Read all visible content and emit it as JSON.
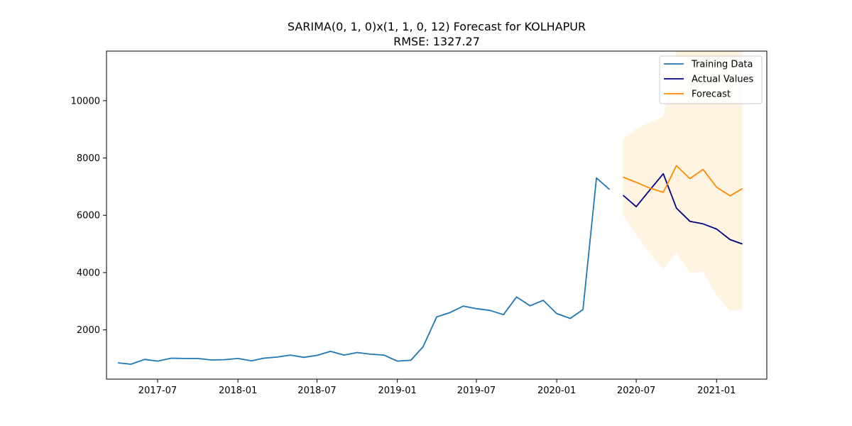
{
  "chart_data": {
    "type": "line",
    "title": "SARIMA(0, 1, 0)x(1, 1, 0, 12) Forecast for KOLHAPUR",
    "subtitle": "RMSE: 1327.27",
    "xlabel": "",
    "ylabel": "",
    "x_axis": {
      "type": "date",
      "range": [
        "2017-03-06",
        "2021-04-26"
      ],
      "ticks": [
        "2017-07",
        "2018-01",
        "2018-07",
        "2019-01",
        "2019-07",
        "2020-01",
        "2020-07",
        "2021-01"
      ]
    },
    "y_axis": {
      "range": [
        280,
        11730
      ],
      "ticks": [
        2000,
        4000,
        6000,
        8000,
        10000
      ]
    },
    "grid": false,
    "legend": {
      "position": "top-right",
      "entries": [
        {
          "label": "Training Data",
          "color": "#1f77b4"
        },
        {
          "label": "Actual Values",
          "color": "#000080"
        },
        {
          "label": "Forecast",
          "color": "#ff8c00"
        }
      ]
    },
    "series": [
      {
        "name": "Training Data",
        "color": "#1f77b4",
        "points": [
          {
            "x": "2017-04-01",
            "y": 850
          },
          {
            "x": "2017-05-01",
            "y": 800
          },
          {
            "x": "2017-06-01",
            "y": 970
          },
          {
            "x": "2017-07-01",
            "y": 910
          },
          {
            "x": "2017-08-01",
            "y": 1010
          },
          {
            "x": "2017-09-01",
            "y": 1000
          },
          {
            "x": "2017-10-01",
            "y": 1000
          },
          {
            "x": "2017-11-01",
            "y": 950
          },
          {
            "x": "2017-12-01",
            "y": 960
          },
          {
            "x": "2018-01-01",
            "y": 1000
          },
          {
            "x": "2018-02-01",
            "y": 920
          },
          {
            "x": "2018-03-01",
            "y": 1010
          },
          {
            "x": "2018-04-01",
            "y": 1050
          },
          {
            "x": "2018-05-01",
            "y": 1120
          },
          {
            "x": "2018-06-01",
            "y": 1040
          },
          {
            "x": "2018-07-01",
            "y": 1110
          },
          {
            "x": "2018-08-01",
            "y": 1250
          },
          {
            "x": "2018-09-01",
            "y": 1120
          },
          {
            "x": "2018-10-01",
            "y": 1210
          },
          {
            "x": "2018-11-01",
            "y": 1150
          },
          {
            "x": "2018-12-01",
            "y": 1120
          },
          {
            "x": "2019-01-01",
            "y": 910
          },
          {
            "x": "2019-02-01",
            "y": 940
          },
          {
            "x": "2019-03-01",
            "y": 1410
          },
          {
            "x": "2019-04-01",
            "y": 2450
          },
          {
            "x": "2019-05-01",
            "y": 2600
          },
          {
            "x": "2019-06-01",
            "y": 2830
          },
          {
            "x": "2019-07-01",
            "y": 2740
          },
          {
            "x": "2019-08-01",
            "y": 2680
          },
          {
            "x": "2019-09-01",
            "y": 2530
          },
          {
            "x": "2019-10-01",
            "y": 3150
          },
          {
            "x": "2019-11-01",
            "y": 2840
          },
          {
            "x": "2019-12-01",
            "y": 3030
          },
          {
            "x": "2020-01-01",
            "y": 2570
          },
          {
            "x": "2020-02-01",
            "y": 2400
          },
          {
            "x": "2020-03-01",
            "y": 2710
          },
          {
            "x": "2020-04-01",
            "y": 7300
          },
          {
            "x": "2020-05-01",
            "y": 6900
          }
        ]
      },
      {
        "name": "Actual Values",
        "color": "#000080",
        "points": [
          {
            "x": "2020-06-01",
            "y": 6700
          },
          {
            "x": "2020-07-01",
            "y": 6300
          },
          {
            "x": "2020-08-01",
            "y": 6880
          },
          {
            "x": "2020-09-01",
            "y": 7450
          },
          {
            "x": "2020-10-01",
            "y": 6250
          },
          {
            "x": "2020-11-01",
            "y": 5790
          },
          {
            "x": "2020-12-01",
            "y": 5700
          },
          {
            "x": "2021-01-01",
            "y": 5520
          },
          {
            "x": "2021-02-01",
            "y": 5150
          },
          {
            "x": "2021-03-01",
            "y": 5000
          }
        ]
      },
      {
        "name": "Forecast",
        "color": "#ff8c00",
        "points": [
          {
            "x": "2020-06-01",
            "y": 7330
          },
          {
            "x": "2020-07-01",
            "y": 7150
          },
          {
            "x": "2020-08-01",
            "y": 6950
          },
          {
            "x": "2020-09-01",
            "y": 6800
          },
          {
            "x": "2020-10-01",
            "y": 7730
          },
          {
            "x": "2020-11-01",
            "y": 7280
          },
          {
            "x": "2020-12-01",
            "y": 7600
          },
          {
            "x": "2021-01-01",
            "y": 6980
          },
          {
            "x": "2021-02-01",
            "y": 6680
          },
          {
            "x": "2021-03-01",
            "y": 6930
          }
        ]
      }
    ],
    "confidence_interval": {
      "color": "#fff3e2",
      "points": [
        {
          "x": "2020-06-01",
          "lower": 6000,
          "upper": 8680
        },
        {
          "x": "2020-07-01",
          "lower": 5330,
          "upper": 9030
        },
        {
          "x": "2020-08-01",
          "lower": 4670,
          "upper": 9240
        },
        {
          "x": "2020-09-01",
          "lower": 4100,
          "upper": 9450
        },
        {
          "x": "2020-10-01",
          "lower": 4700,
          "upper": 11730
        },
        {
          "x": "2020-11-01",
          "lower": 3980,
          "upper": 11730
        },
        {
          "x": "2020-12-01",
          "lower": 4040,
          "upper": 11730
        },
        {
          "x": "2021-01-01",
          "lower": 3200,
          "upper": 11730
        },
        {
          "x": "2021-02-01",
          "lower": 2670,
          "upper": 11730
        },
        {
          "x": "2021-03-01",
          "lower": 2700,
          "upper": 11730
        }
      ]
    }
  }
}
